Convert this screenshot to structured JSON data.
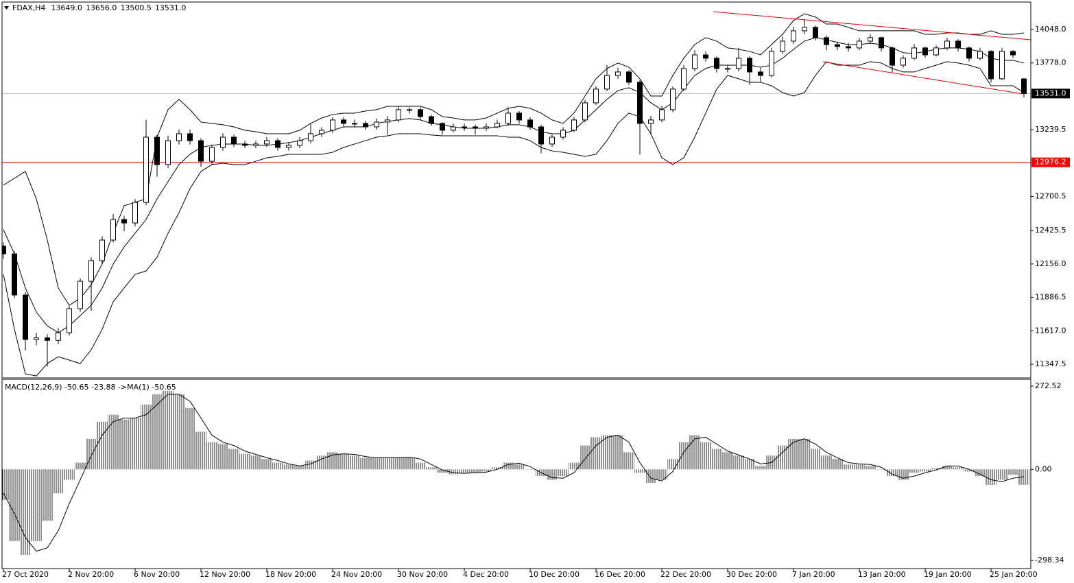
{
  "chart_data": [
    {
      "type": "candlestick",
      "header": {
        "symbol": "FDAX,H4",
        "ohlc": [
          "13649.0",
          "13656.0",
          "13500.5",
          "13531.0"
        ]
      },
      "categories": [
        "27 Oct 2020",
        null,
        null,
        null,
        null,
        null,
        "2 Nov 20:00",
        null,
        null,
        null,
        null,
        null,
        "6 Nov 20:00",
        null,
        null,
        null,
        null,
        null,
        "12 Nov 20:00",
        null,
        null,
        null,
        null,
        null,
        "18 Nov 20:00",
        null,
        null,
        null,
        null,
        null,
        "24 Nov 20:00",
        null,
        null,
        null,
        null,
        null,
        "30 Nov 20:00",
        null,
        null,
        null,
        null,
        null,
        "4 Dec 20:00",
        null,
        null,
        null,
        null,
        null,
        "10 Dec 20:00",
        null,
        null,
        null,
        null,
        null,
        "16 Dec 20:00",
        null,
        null,
        null,
        null,
        null,
        "22 Dec 20:00",
        null,
        null,
        null,
        null,
        null,
        "30 Dec 20:00",
        null,
        null,
        null,
        null,
        null,
        "7 Jan 20:00",
        null,
        null,
        null,
        null,
        null,
        "13 Jan 20:00",
        null,
        null,
        null,
        null,
        null,
        "19 Jan 20:00",
        null,
        null,
        null,
        null,
        null,
        "25 Jan 20:00",
        null,
        null,
        null
      ],
      "open": [
        12300,
        12238,
        11906,
        11547,
        11560,
        11540,
        11602,
        11796,
        12017,
        12183,
        12349,
        12515,
        12487,
        12653,
        13179,
        12958,
        13151,
        13207,
        13151,
        12985,
        13096,
        13179,
        13124,
        13113,
        13124,
        13151,
        13096,
        13113,
        13151,
        13207,
        13235,
        13318,
        13290,
        13290,
        13262,
        13301,
        13318,
        13401,
        13401,
        13345,
        13290,
        13235,
        13262,
        13262,
        13251,
        13262,
        13290,
        13373,
        13318,
        13262,
        13124,
        13179,
        13235,
        13318,
        13456,
        13567,
        13677,
        13705,
        13622,
        13290,
        13318,
        13401,
        13567,
        13733,
        13843,
        13816,
        13733,
        13733,
        13816,
        13705,
        13677,
        13871,
        13954,
        14037,
        14065,
        13982,
        13926,
        13910,
        13899,
        13954,
        13982,
        13899,
        13760,
        13816,
        13899,
        13843,
        13899,
        13954,
        13899,
        13816,
        13871,
        13650,
        13871,
        13649
      ],
      "high": [
        12330,
        12260,
        11930,
        11600,
        11590,
        11640,
        11820,
        12040,
        12210,
        12380,
        12560,
        12545,
        12680,
        13320,
        13200,
        13190,
        13240,
        13240,
        13170,
        13120,
        13210,
        13200,
        13150,
        13150,
        13180,
        13170,
        13140,
        13180,
        13290,
        13260,
        13340,
        13340,
        13320,
        13310,
        13330,
        13350,
        13430,
        13420,
        13420,
        13360,
        13300,
        13290,
        13290,
        13280,
        13290,
        13320,
        13420,
        13390,
        13340,
        13280,
        13200,
        13260,
        13340,
        13480,
        13590,
        13760,
        13740,
        13720,
        13640,
        13350,
        13430,
        13590,
        13760,
        13880,
        13870,
        13830,
        13760,
        13900,
        13830,
        13740,
        13900,
        13990,
        14070,
        14130,
        14080,
        14000,
        13950,
        13940,
        13980,
        14010,
        13990,
        13910,
        13840,
        13930,
        13910,
        13920,
        13980,
        13970,
        13910,
        13900,
        13880,
        13900,
        13880,
        13656
      ],
      "low": [
        12200,
        11880,
        11460,
        11500,
        11330,
        11510,
        11580,
        11770,
        11780,
        12160,
        12330,
        12420,
        12460,
        12630,
        12860,
        12930,
        13120,
        13120,
        12940,
        12960,
        13070,
        13100,
        13090,
        13090,
        13100,
        13070,
        13070,
        13090,
        13130,
        13180,
        13210,
        13260,
        13260,
        13240,
        13240,
        13200,
        13300,
        13370,
        13320,
        13270,
        13200,
        13220,
        13230,
        13200,
        13230,
        13250,
        13270,
        13290,
        13240,
        13050,
        13100,
        13160,
        13220,
        13300,
        13440,
        13550,
        13650,
        13600,
        13040,
        13200,
        13300,
        13380,
        13550,
        13710,
        13790,
        13700,
        13700,
        13710,
        13600,
        13620,
        13660,
        13850,
        13930,
        14010,
        13960,
        13880,
        13880,
        13870,
        13880,
        13930,
        13870,
        13700,
        13740,
        13800,
        13820,
        13830,
        13880,
        13870,
        13790,
        13800,
        13620,
        13640,
        13820,
        13500.5
      ],
      "close": [
        12238,
        11906,
        11547,
        11560,
        11540,
        11602,
        11796,
        12017,
        12183,
        12349,
        12515,
        12487,
        12653,
        13179,
        12958,
        13151,
        13207,
        13151,
        12985,
        13096,
        13179,
        13124,
        13113,
        13124,
        13151,
        13096,
        13113,
        13151,
        13207,
        13235,
        13318,
        13290,
        13290,
        13262,
        13301,
        13318,
        13401,
        13401,
        13345,
        13290,
        13235,
        13262,
        13262,
        13251,
        13262,
        13290,
        13373,
        13318,
        13262,
        13124,
        13179,
        13235,
        13318,
        13456,
        13567,
        13677,
        13705,
        13622,
        13290,
        13318,
        13401,
        13567,
        13733,
        13843,
        13816,
        13733,
        13733,
        13816,
        13705,
        13677,
        13871,
        13954,
        14037,
        14065,
        13982,
        13926,
        13910,
        13899,
        13954,
        13982,
        13899,
        13760,
        13816,
        13899,
        13843,
        13899,
        13954,
        13899,
        13816,
        13871,
        13650,
        13871,
        13843,
        13531
      ],
      "bands": {
        "upper": [
          12792,
          12847,
          12903,
          12681,
          12349,
          11962,
          11823,
          11879,
          11989,
          12155,
          12404,
          12626,
          12653,
          12681,
          13179,
          13401,
          13484,
          13401,
          13301,
          13290,
          13279,
          13262,
          13235,
          13223,
          13207,
          13207,
          13207,
          13235,
          13290,
          13334,
          13362,
          13373,
          13373,
          13390,
          13401,
          13428,
          13428,
          13428,
          13428,
          13401,
          13345,
          13334,
          13318,
          13318,
          13334,
          13373,
          13412,
          13428,
          13412,
          13373,
          13318,
          13290,
          13373,
          13511,
          13650,
          13733,
          13777,
          13744,
          13650,
          13511,
          13511,
          13677,
          13816,
          13926,
          13982,
          13954,
          13899,
          13888,
          13871,
          13843,
          13926,
          14009,
          14120,
          14175,
          14148,
          14092,
          14092,
          14065,
          14037,
          14037,
          14037,
          14037,
          14037,
          14037,
          14009,
          14009,
          14020,
          14020,
          14009,
          14009,
          14037,
          14009,
          14009,
          14020
        ],
        "middle": [
          12432,
          12238,
          11962,
          11768,
          11657,
          11602,
          11657,
          11740,
          11823,
          11962,
          12155,
          12294,
          12404,
          12515,
          12681,
          12820,
          12958,
          13041,
          13096,
          13113,
          13124,
          13124,
          13124,
          13113,
          13113,
          13124,
          13135,
          13151,
          13179,
          13207,
          13235,
          13262,
          13262,
          13262,
          13290,
          13306,
          13318,
          13329,
          13318,
          13290,
          13279,
          13262,
          13251,
          13251,
          13251,
          13262,
          13279,
          13279,
          13262,
          13223,
          13207,
          13207,
          13235,
          13318,
          13401,
          13484,
          13555,
          13578,
          13539,
          13456,
          13401,
          13456,
          13567,
          13677,
          13733,
          13760,
          13760,
          13760,
          13760,
          13744,
          13760,
          13816,
          13888,
          13954,
          13982,
          13965,
          13943,
          13926,
          13926,
          13937,
          13926,
          13899,
          13860,
          13854,
          13871,
          13888,
          13899,
          13899,
          13888,
          13871,
          13816,
          13799,
          13799,
          13777
        ],
        "lower": [
          12072,
          11630,
          11270,
          11253,
          11353,
          11408,
          11381,
          11353,
          11464,
          11630,
          11851,
          11962,
          12072,
          12100,
          12211,
          12404,
          12570,
          12764,
          12903,
          12958,
          12969,
          12958,
          12958,
          12985,
          13013,
          13024,
          13041,
          13041,
          13041,
          13041,
          13057,
          13096,
          13124,
          13151,
          13179,
          13190,
          13207,
          13207,
          13207,
          13196,
          13190,
          13190,
          13190,
          13190,
          13190,
          13190,
          13179,
          13179,
          13151,
          13096,
          13068,
          13057,
          13041,
          13024,
          13041,
          13151,
          13290,
          13373,
          13345,
          13207,
          13013,
          12958,
          13013,
          13179,
          13373,
          13567,
          13677,
          13650,
          13622,
          13622,
          13594,
          13539,
          13511,
          13539,
          13677,
          13788,
          13760,
          13760,
          13760,
          13788,
          13777,
          13733,
          13705,
          13705,
          13733,
          13760,
          13788,
          13777,
          13760,
          13733,
          13594,
          13594,
          13594,
          13539
        ]
      },
      "band_color": "#000000",
      "up_color": "#ffffff",
      "down_color": "#000000",
      "ylim": [
        11237,
        14269
      ],
      "yticks": [
        {
          "value": 14048,
          "label": "14048.0"
        },
        {
          "value": 13778,
          "label": "13778.0"
        },
        13239.5,
        12700.5,
        12425.5,
        {
          "value": 12156,
          "label": "12156.0"
        },
        11886.5,
        {
          "value": 11617,
          "label": "11617.0"
        },
        11347.5
      ],
      "price_line": {
        "value": 13531,
        "label": "13531.0"
      },
      "price_line_color": "#c0c0c0",
      "level_line": 12976.2,
      "level_color": "#ff0000"
    },
    {
      "type": "macd",
      "label": "MACD(12,26,9) -50.65 -23.88 ->MA(1) -50.65",
      "histogram": [
        -100,
        -235,
        -280,
        -235,
        -168,
        -78,
        -34,
        22,
        100,
        156,
        179,
        163,
        168,
        212,
        246,
        257,
        246,
        201,
        123,
        89,
        83,
        67,
        51,
        45,
        34,
        22,
        16,
        11,
        29,
        45,
        56,
        51,
        45,
        38,
        38,
        38,
        38,
        38,
        22,
        7,
        -11,
        -16,
        -11,
        -11,
        -7,
        7,
        22,
        16,
        0,
        -22,
        -34,
        -22,
        22,
        78,
        105,
        112,
        112,
        56,
        -11,
        -45,
        -34,
        34,
        89,
        112,
        89,
        67,
        56,
        45,
        34,
        11,
        45,
        78,
        100,
        100,
        67,
        45,
        34,
        16,
        16,
        11,
        0,
        -22,
        -34,
        -11,
        -7,
        4,
        11,
        7,
        -7,
        -22,
        -51,
        -34,
        -18,
        -50.65
      ],
      "signal": [
        -78,
        -145,
        -223,
        -268,
        -257,
        -201,
        -112,
        -34,
        45,
        112,
        156,
        168,
        168,
        179,
        212,
        246,
        246,
        223,
        168,
        112,
        89,
        78,
        60,
        49,
        38,
        29,
        18,
        11,
        18,
        34,
        47,
        51,
        49,
        42,
        38,
        38,
        38,
        40,
        34,
        16,
        -2,
        -11,
        -13,
        -11,
        -9,
        0,
        16,
        20,
        9,
        -11,
        -27,
        -29,
        -11,
        34,
        78,
        105,
        112,
        89,
        22,
        -29,
        -38,
        -7,
        56,
        100,
        105,
        83,
        60,
        47,
        34,
        18,
        22,
        56,
        89,
        100,
        83,
        56,
        38,
        22,
        18,
        16,
        7,
        -16,
        -29,
        -22,
        -11,
        -2,
        11,
        11,
        0,
        -16,
        -34,
        -40,
        -29,
        -23.88
      ],
      "color": "#000000",
      "ylim": [
        -325,
        295
      ],
      "yticks": [
        272.52,
        {
          "value": 0,
          "label": "0.00"
        },
        -298.34
      ]
    }
  ]
}
